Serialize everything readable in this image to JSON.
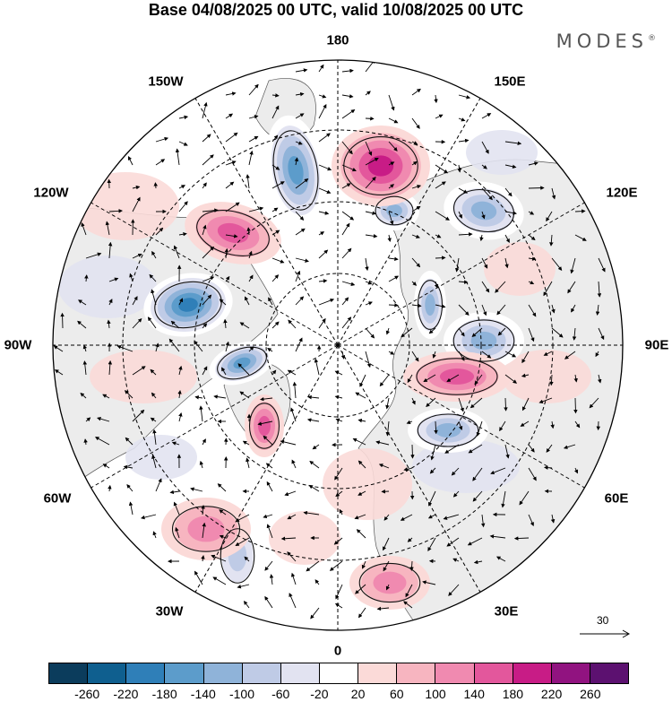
{
  "title": "Base 04/08/2025 00 UTC, valid 10/08/2025 00 UTC",
  "brand": {
    "name": "MODES",
    "mark": "®"
  },
  "longitude_labels": [
    {
      "id": "lon-180",
      "text": "180"
    },
    {
      "id": "lon-150e",
      "text": "150E"
    },
    {
      "id": "lon-120e",
      "text": "120E"
    },
    {
      "id": "lon-90e",
      "text": "90E"
    },
    {
      "id": "lon-60e",
      "text": "60E"
    },
    {
      "id": "lon-30e",
      "text": "30E"
    },
    {
      "id": "lon-0",
      "text": "0"
    },
    {
      "id": "lon-30w",
      "text": "30W"
    },
    {
      "id": "lon-60w",
      "text": "60W"
    },
    {
      "id": "lon-90w",
      "text": "90W"
    },
    {
      "id": "lon-120w",
      "text": "120W"
    },
    {
      "id": "lon-150w",
      "text": "150W"
    }
  ],
  "reference_vector": {
    "label": "30"
  },
  "colorbar": {
    "colors": [
      "#0b3c5c",
      "#0f5f8f",
      "#2f7fb8",
      "#5c9ccb",
      "#8fb3d9",
      "#bfcbe6",
      "#e2e3f1",
      "#ffffff",
      "#fbdad8",
      "#f7b5c0",
      "#f08ab0",
      "#e3579c",
      "#c81c86",
      "#911380",
      "#5c1170"
    ],
    "ticks": [
      "-260",
      "-220",
      "-180",
      "-140",
      "-100",
      "-60",
      "-20",
      "20",
      "60",
      "100",
      "140",
      "180",
      "220",
      "260"
    ]
  },
  "anomaly_centers": [
    {
      "name": "low-alaska-north",
      "value": -200
    },
    {
      "name": "low-aleutian-east",
      "value": -140
    },
    {
      "name": "low-kamchatka",
      "value": -160
    },
    {
      "name": "low-east-siberia",
      "value": -160
    },
    {
      "name": "low-hudson-bay",
      "value": -220
    },
    {
      "name": "low-canadian-archipelago",
      "value": -180
    },
    {
      "name": "low-central-siberia",
      "value": -140
    },
    {
      "name": "low-ural",
      "value": -140
    },
    {
      "name": "low-north-atlantic",
      "value": -120
    },
    {
      "name": "high-bering",
      "value": 180
    },
    {
      "name": "high-gulf-alaska",
      "value": 160
    },
    {
      "name": "high-greenland",
      "value": 140
    },
    {
      "name": "high-west-siberia",
      "value": 140
    },
    {
      "name": "high-atlantic",
      "value": 100
    },
    {
      "name": "high-europe",
      "value": 100
    }
  ]
}
